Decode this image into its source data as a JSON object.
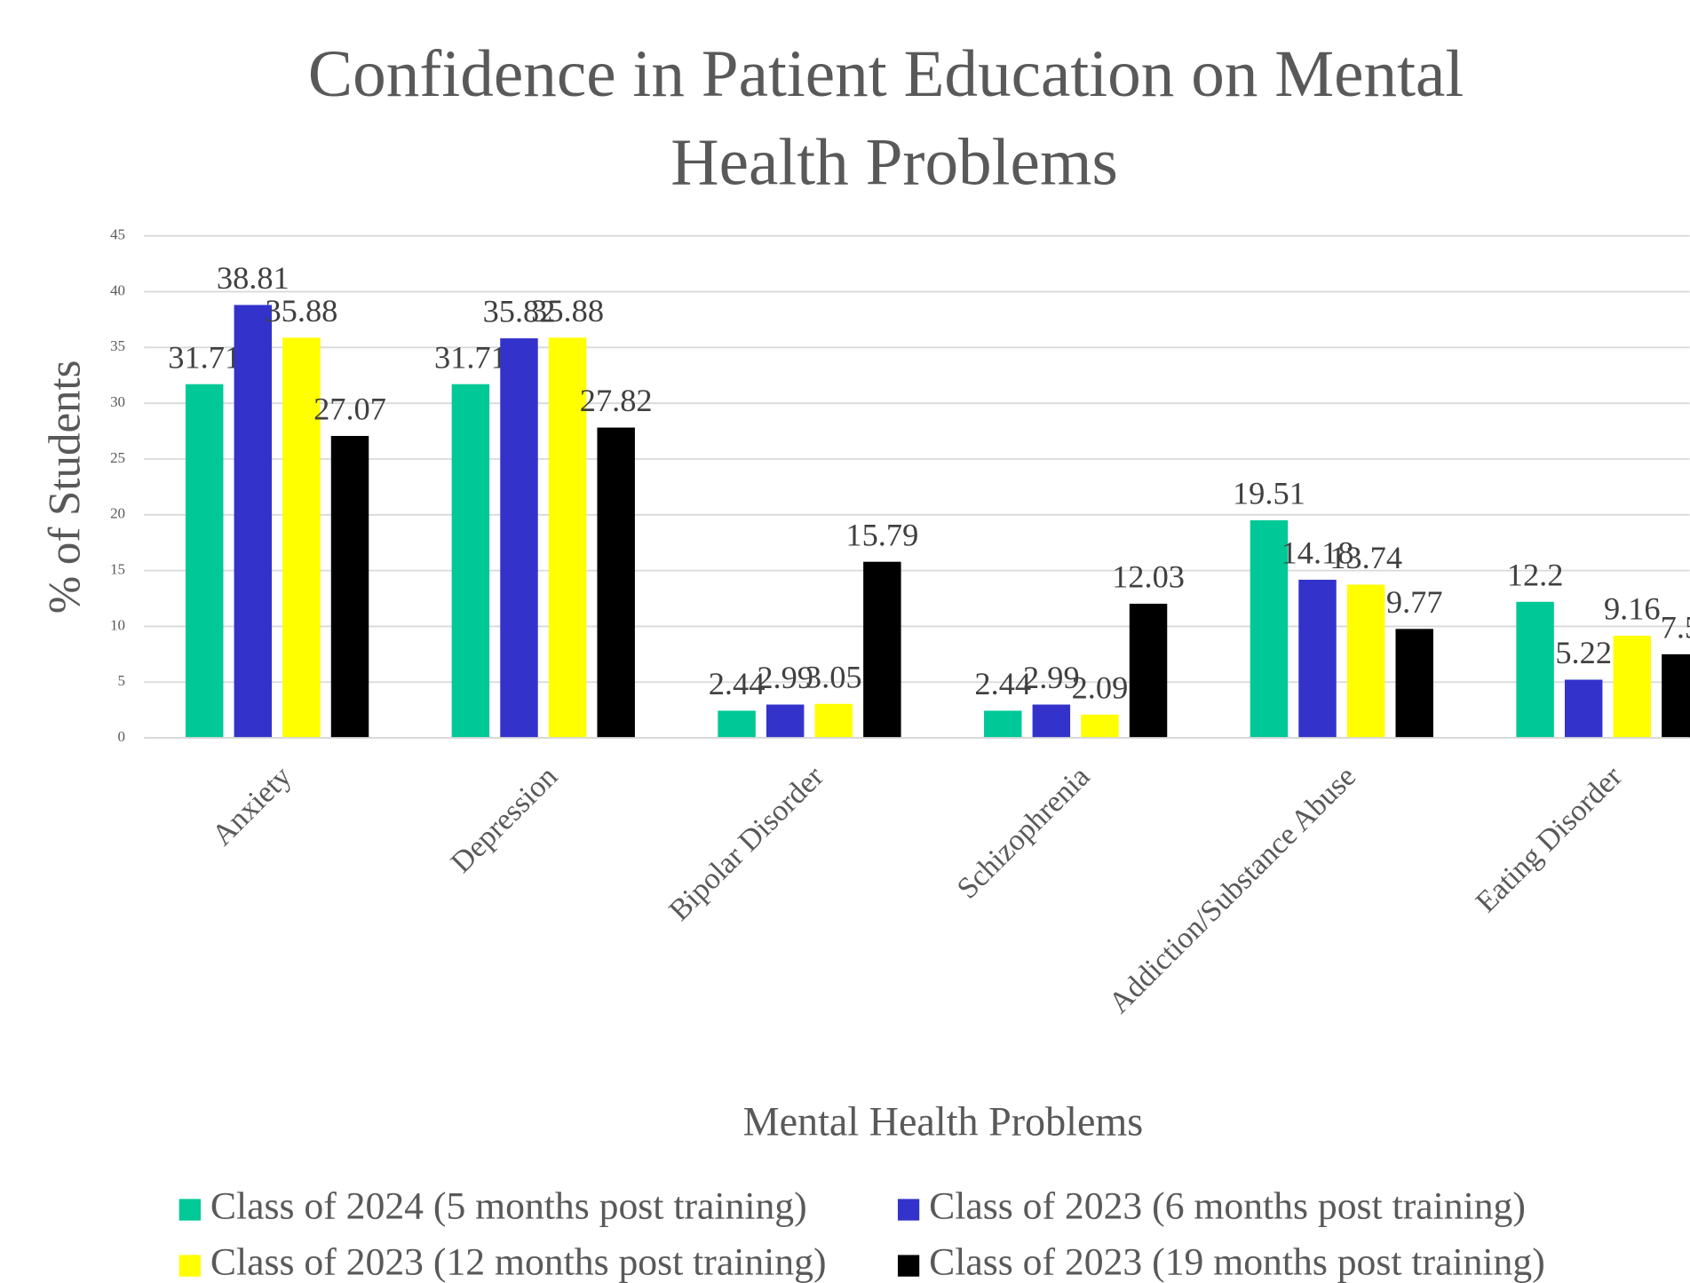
{
  "chart_data": {
    "type": "bar",
    "title": "Confidence in Patient Education on Mental Health Problems",
    "x_label": "Mental Health Problems",
    "y_label": "% of Students",
    "categories": [
      "Anxiety",
      "Depression",
      "Bipolar Disorder",
      "Schizophrenia",
      "Addiction/Substance Abuse",
      "Eating Disorder"
    ],
    "series": [
      {
        "name": "Class of 2024 (5 months post training)",
        "color": "#00c896",
        "values": [
          31.71,
          31.71,
          2.44,
          2.44,
          19.51,
          12.2
        ]
      },
      {
        "name": "Class of 2023 (6 months post training)",
        "color": "#3333cc",
        "values": [
          38.81,
          35.82,
          2.99,
          2.99,
          14.18,
          5.22
        ]
      },
      {
        "name": "Class of 2023 (12 months post training)",
        "color": "#ffff00",
        "values": [
          35.88,
          35.88,
          3.05,
          2.09,
          13.74,
          9.16
        ]
      },
      {
        "name": "Class of 2023 (19 months post training)",
        "color": "#000000",
        "values": [
          27.07,
          27.82,
          15.79,
          12.03,
          9.77,
          7.5
        ]
      }
    ],
    "ylim": [
      0,
      45
    ],
    "yticks": [
      0,
      5,
      10,
      15,
      20,
      25,
      30,
      35,
      40,
      45
    ],
    "grid": true,
    "legend": "bottom"
  }
}
